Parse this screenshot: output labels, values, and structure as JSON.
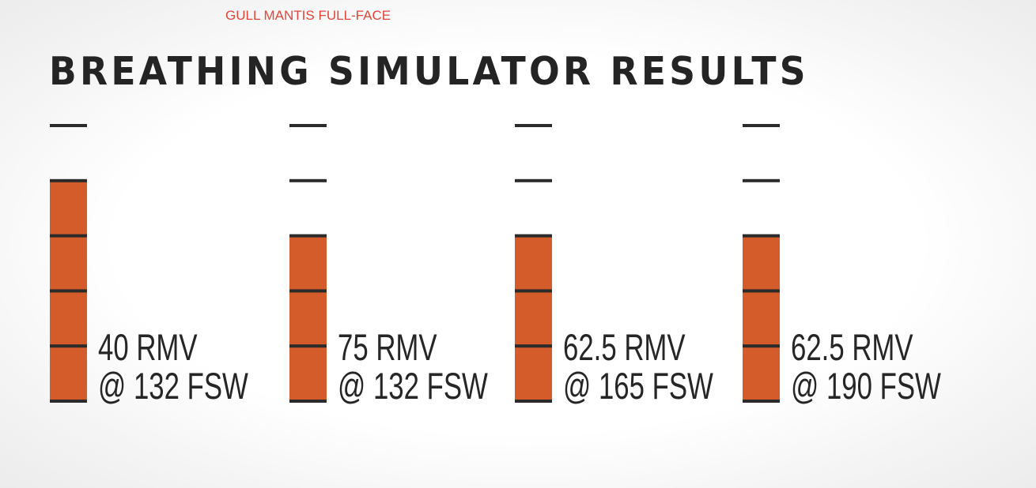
{
  "header": {
    "subtitle": "GULL MANTIS FULL-FACE",
    "title": "BREATHING SIMULATOR RESULTS"
  },
  "colors": {
    "fill": "#d45b2a",
    "tick": "#2b2b2b",
    "subtitle": "#e0463a",
    "title": "#242424"
  },
  "chart_data": {
    "type": "bar",
    "title": "BREATHING SIMULATOR RESULTS",
    "subtitle": "GULL MANTIS FULL-FACE",
    "segments_total": 5,
    "ylim": [
      0,
      5
    ],
    "categories": [
      "40 RMV @ 132 FSW",
      "75 RMV @ 132 FSW",
      "62.5 RMV @ 165 FSW",
      "62.5 RMV @ 190 FSW"
    ],
    "values": [
      4,
      3,
      3,
      3
    ],
    "labels": [
      {
        "line1": "40 RMV",
        "line2": "@ 132 FSW"
      },
      {
        "line1": "75 RMV",
        "line2": "@ 132 FSW"
      },
      {
        "line1": "62.5 RMV",
        "line2": "@ 165 FSW"
      },
      {
        "line1": "62.5 RMV",
        "line2": "@ 190 FSW"
      }
    ]
  }
}
